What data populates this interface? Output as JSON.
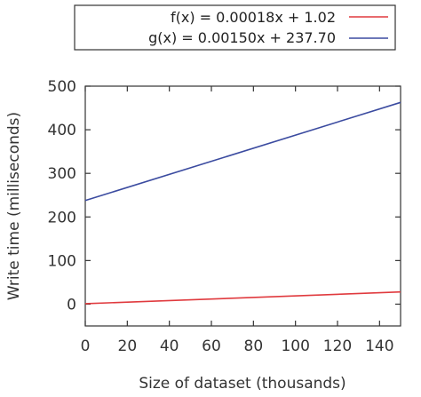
{
  "chart_data": {
    "type": "line",
    "title": "",
    "xlabel": "Size of dataset (thousands)",
    "ylabel": "Write time (milliseconds)",
    "xlim": [
      0,
      150
    ],
    "ylim": [
      -50,
      500
    ],
    "xticks": [
      0,
      20,
      40,
      60,
      80,
      100,
      120,
      140
    ],
    "yticks": [
      0,
      100,
      200,
      300,
      400,
      500
    ],
    "grid": false,
    "legend_position": "top",
    "series": [
      {
        "name": "f(x) = 0.00018x + 1.02",
        "color": "#e03a3e",
        "x": [
          0,
          150
        ],
        "y": [
          1.02,
          28.02
        ]
      },
      {
        "name": "g(x) = 0.00150x + 237.70",
        "color": "#3b4ba0",
        "x": [
          0,
          150
        ],
        "y": [
          237.7,
          462.7
        ]
      }
    ]
  }
}
